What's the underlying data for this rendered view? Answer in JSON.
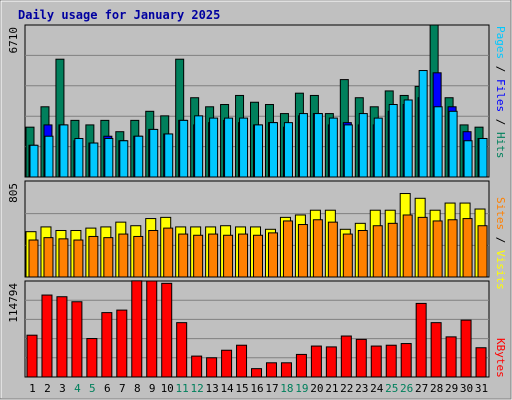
{
  "title": "Daily usage for January 2025",
  "colors": {
    "pages": "#00c8ff",
    "files": "#0000ff",
    "hits": "#00805c",
    "visits": "#ffff00",
    "sites": "#ff8000",
    "kbytes": "#ff0000",
    "title": "#0000a0",
    "weekend": "#00805c",
    "weekday": "#000000",
    "panel_bg": "#c0c0c0",
    "gridline": "#808080"
  },
  "chart_data": [
    {
      "type": "bar",
      "panel": "hits-files-pages",
      "y_max_label": "6710",
      "ylim": [
        0,
        6710
      ],
      "categories": [
        "1",
        "2",
        "3",
        "4",
        "5",
        "6",
        "7",
        "8",
        "9",
        "10",
        "11",
        "12",
        "13",
        "14",
        "15",
        "16",
        "17",
        "18",
        "19",
        "20",
        "21",
        "22",
        "23",
        "24",
        "25",
        "26",
        "27",
        "28",
        "29",
        "30",
        "31"
      ],
      "series": [
        {
          "name": "Hits",
          "values": [
            2200,
            3100,
            5200,
            2500,
            2300,
            2500,
            2000,
            2500,
            2900,
            2700,
            5200,
            3500,
            3100,
            3200,
            3600,
            3300,
            3200,
            2800,
            3700,
            3600,
            2800,
            4300,
            3500,
            3100,
            3800,
            3600,
            4000,
            6710,
            3500,
            2300,
            2200
          ]
        },
        {
          "name": "Files",
          "values": [
            1400,
            2300,
            2300,
            1600,
            1500,
            1800,
            1600,
            1800,
            2100,
            1900,
            2500,
            2300,
            2400,
            2500,
            2400,
            2300,
            2400,
            2200,
            2700,
            2800,
            2300,
            2400,
            2300,
            2300,
            2900,
            3200,
            3500,
            4600,
            3100,
            2000,
            1700
          ]
        },
        {
          "name": "Pages",
          "values": [
            1400,
            1800,
            2300,
            1700,
            1500,
            1700,
            1600,
            1800,
            2100,
            1900,
            2500,
            2700,
            2600,
            2600,
            2600,
            2300,
            2400,
            2400,
            2800,
            2800,
            2600,
            2300,
            2800,
            2600,
            3200,
            3400,
            4700,
            3100,
            2900,
            1600,
            1700
          ]
        }
      ]
    },
    {
      "type": "bar",
      "panel": "visits-sites",
      "y_max_label": "805",
      "ylim": [
        0,
        805
      ],
      "categories": [
        "1",
        "2",
        "3",
        "4",
        "5",
        "6",
        "7",
        "8",
        "9",
        "10",
        "11",
        "12",
        "13",
        "14",
        "15",
        "16",
        "17",
        "18",
        "19",
        "20",
        "21",
        "22",
        "23",
        "24",
        "25",
        "26",
        "27",
        "28",
        "29",
        "30",
        "31"
      ],
      "series": [
        {
          "name": "Visits",
          "values": [
            380,
            420,
            390,
            390,
            410,
            420,
            460,
            430,
            490,
            500,
            420,
            420,
            420,
            430,
            420,
            420,
            400,
            500,
            520,
            560,
            560,
            400,
            450,
            560,
            560,
            700,
            660,
            560,
            620,
            620,
            570
          ]
        },
        {
          "name": "Sites",
          "values": [
            310,
            330,
            320,
            310,
            340,
            330,
            360,
            340,
            390,
            410,
            360,
            350,
            360,
            350,
            360,
            350,
            370,
            470,
            440,
            480,
            460,
            360,
            390,
            430,
            450,
            520,
            500,
            470,
            480,
            490,
            430
          ]
        }
      ]
    },
    {
      "type": "bar",
      "panel": "kbytes",
      "y_max_label": "114794",
      "ylim": [
        0,
        114794
      ],
      "categories": [
        "1",
        "2",
        "3",
        "4",
        "5",
        "6",
        "7",
        "8",
        "9",
        "10",
        "11",
        "12",
        "13",
        "14",
        "15",
        "16",
        "17",
        "18",
        "19",
        "20",
        "21",
        "22",
        "23",
        "24",
        "25",
        "26",
        "27",
        "28",
        "29",
        "30",
        "31"
      ],
      "series": [
        {
          "name": "KBytes",
          "values": [
            50000,
            98000,
            96000,
            90000,
            46000,
            77000,
            80000,
            115000,
            114794,
            112000,
            65000,
            25000,
            23000,
            32000,
            38000,
            10000,
            17000,
            17000,
            27000,
            37000,
            36000,
            49000,
            45000,
            37000,
            38000,
            40000,
            88000,
            65000,
            48000,
            68000,
            35000
          ]
        }
      ]
    }
  ],
  "legend": {
    "top": [
      {
        "text": "Pages",
        "key": "pages"
      },
      {
        "text": " / ",
        "key": "slash"
      },
      {
        "text": "Files",
        "key": "files"
      },
      {
        "text": " / ",
        "key": "slash"
      },
      {
        "text": "Hits",
        "key": "hits"
      }
    ],
    "middle": [
      {
        "text": "Sites",
        "key": "sites"
      },
      {
        "text": " / ",
        "key": "slash"
      },
      {
        "text": "Visits",
        "key": "visits"
      }
    ],
    "bottom": [
      {
        "text": "KBytes",
        "key": "kbytes"
      }
    ]
  },
  "weekend_days": [
    4,
    5,
    11,
    12,
    18,
    19,
    25,
    26
  ]
}
